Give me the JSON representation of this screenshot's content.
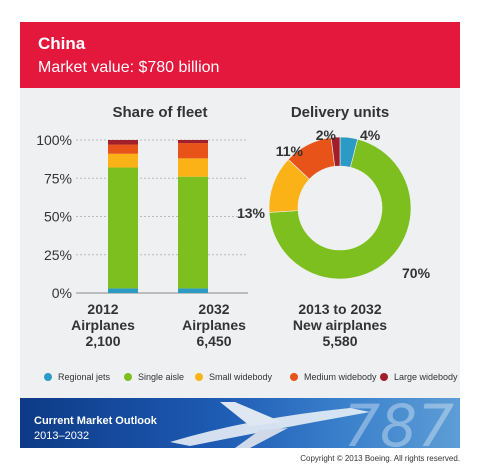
{
  "header": {
    "title": "China",
    "subtitle": "Market value: $780 billion",
    "color": "#e3183c"
  },
  "colors": {
    "Regional jets": "#2b9ac4",
    "Single aisle": "#7dbf1e",
    "Small widebody": "#fbb217",
    "Medium widebody": "#e85319",
    "Large widebody": "#a11e2b"
  },
  "chart_data": [
    {
      "type": "bar",
      "stacked": true,
      "title": "Share of fleet",
      "categories": [
        "2012",
        "2032"
      ],
      "category_labels": [
        {
          "line1": "2012",
          "line2": "Airplanes",
          "line3": "2,100"
        },
        {
          "line1": "2032",
          "line2": "Airplanes",
          "line3": "6,450"
        }
      ],
      "ylim": [
        0,
        100
      ],
      "yticks": [
        "0%",
        "25%",
        "50%",
        "75%",
        "100%"
      ],
      "series": [
        {
          "name": "Regional jets",
          "values": [
            3,
            3
          ]
        },
        {
          "name": "Single aisle",
          "values": [
            79,
            73
          ]
        },
        {
          "name": "Small widebody",
          "values": [
            9,
            12
          ]
        },
        {
          "name": "Medium widebody",
          "values": [
            6,
            10
          ]
        },
        {
          "name": "Large widebody",
          "values": [
            3,
            2
          ]
        }
      ]
    },
    {
      "type": "pie",
      "donut": true,
      "title": "Delivery units",
      "labels": [
        "Regional jets",
        "Single aisle",
        "Small widebody",
        "Medium widebody",
        "Large widebody"
      ],
      "values": [
        4,
        70,
        13,
        11,
        2
      ],
      "data_labels": [
        "4%",
        "70%",
        "13%",
        "11%",
        "2%"
      ],
      "footer": {
        "line1": "2013 to 2032",
        "line2": "New airplanes",
        "line3": "5,580"
      }
    }
  ],
  "legend": [
    "Regional jets",
    "Single aisle",
    "Small widebody",
    "Medium widebody",
    "Large widebody"
  ],
  "banner": {
    "line1": "Current Market Outlook",
    "line2": "2013–2032",
    "big_text": "787"
  },
  "copyright": "Copyright © 2013 Boeing. All rights reserved."
}
